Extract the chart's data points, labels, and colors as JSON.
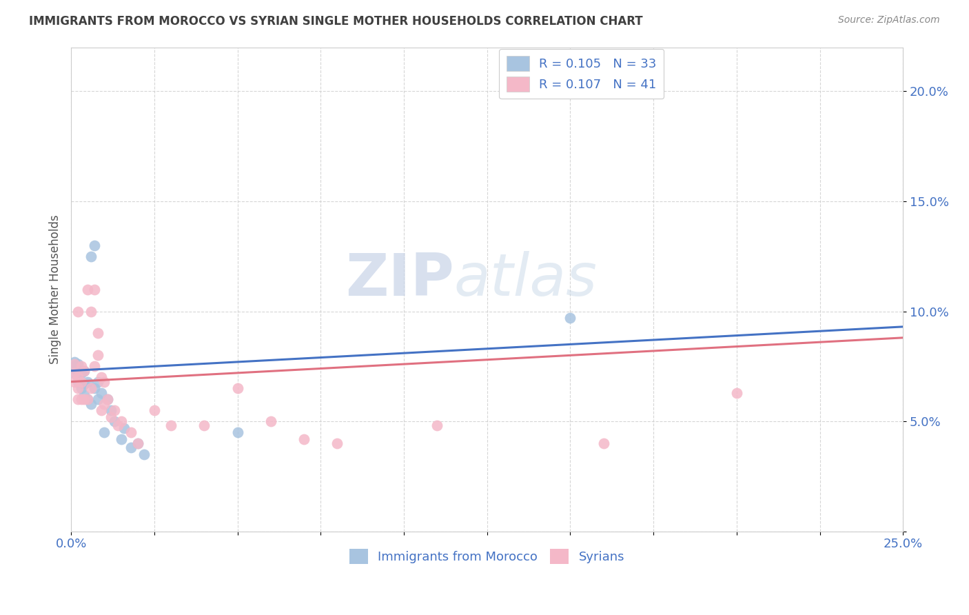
{
  "title": "IMMIGRANTS FROM MOROCCO VS SYRIAN SINGLE MOTHER HOUSEHOLDS CORRELATION CHART",
  "source": "Source: ZipAtlas.com",
  "ylabel": "Single Mother Households",
  "xlim": [
    0.0,
    0.25
  ],
  "ylim": [
    0.0,
    0.22
  ],
  "morocco_R": "0.105",
  "morocco_N": "33",
  "syrian_R": "0.107",
  "syrian_N": "41",
  "morocco_color": "#a8c4e0",
  "syrian_color": "#f4b8c8",
  "morocco_line_color": "#4472c4",
  "syrian_line_color": "#e07080",
  "watermark_zip": "ZIP",
  "watermark_atlas": "atlas",
  "background_color": "#ffffff",
  "grid_color": "#cccccc",
  "tick_color": "#4472c4",
  "title_color": "#404040",
  "source_color": "#888888",
  "ylabel_color": "#555555",
  "morocco_x": [
    0.001,
    0.001,
    0.001,
    0.001,
    0.002,
    0.002,
    0.002,
    0.002,
    0.003,
    0.003,
    0.004,
    0.004,
    0.004,
    0.005,
    0.005,
    0.006,
    0.006,
    0.007,
    0.007,
    0.008,
    0.008,
    0.009,
    0.01,
    0.011,
    0.012,
    0.013,
    0.015,
    0.016,
    0.018,
    0.02,
    0.022,
    0.05,
    0.15
  ],
  "morocco_y": [
    0.072,
    0.074,
    0.075,
    0.077,
    0.068,
    0.07,
    0.073,
    0.076,
    0.065,
    0.072,
    0.062,
    0.067,
    0.073,
    0.06,
    0.068,
    0.058,
    0.125,
    0.065,
    0.13,
    0.06,
    0.068,
    0.063,
    0.045,
    0.06,
    0.055,
    0.05,
    0.042,
    0.047,
    0.038,
    0.04,
    0.035,
    0.045,
    0.097
  ],
  "syrian_x": [
    0.001,
    0.001,
    0.001,
    0.002,
    0.002,
    0.002,
    0.002,
    0.003,
    0.003,
    0.003,
    0.004,
    0.004,
    0.005,
    0.005,
    0.006,
    0.006,
    0.007,
    0.007,
    0.008,
    0.008,
    0.009,
    0.009,
    0.01,
    0.01,
    0.011,
    0.012,
    0.013,
    0.014,
    0.015,
    0.018,
    0.02,
    0.025,
    0.03,
    0.04,
    0.05,
    0.06,
    0.07,
    0.08,
    0.11,
    0.16,
    0.2
  ],
  "syrian_y": [
    0.068,
    0.072,
    0.076,
    0.06,
    0.065,
    0.07,
    0.1,
    0.06,
    0.068,
    0.075,
    0.06,
    0.073,
    0.06,
    0.11,
    0.065,
    0.1,
    0.075,
    0.11,
    0.08,
    0.09,
    0.055,
    0.07,
    0.058,
    0.068,
    0.06,
    0.052,
    0.055,
    0.048,
    0.05,
    0.045,
    0.04,
    0.055,
    0.048,
    0.048,
    0.065,
    0.05,
    0.042,
    0.04,
    0.048,
    0.04,
    0.063
  ],
  "morocco_line_x0": 0.0,
  "morocco_line_y0": 0.073,
  "morocco_line_x1": 0.25,
  "morocco_line_y1": 0.093,
  "syrian_line_x0": 0.0,
  "syrian_line_y0": 0.068,
  "syrian_line_x1": 0.25,
  "syrian_line_y1": 0.088
}
